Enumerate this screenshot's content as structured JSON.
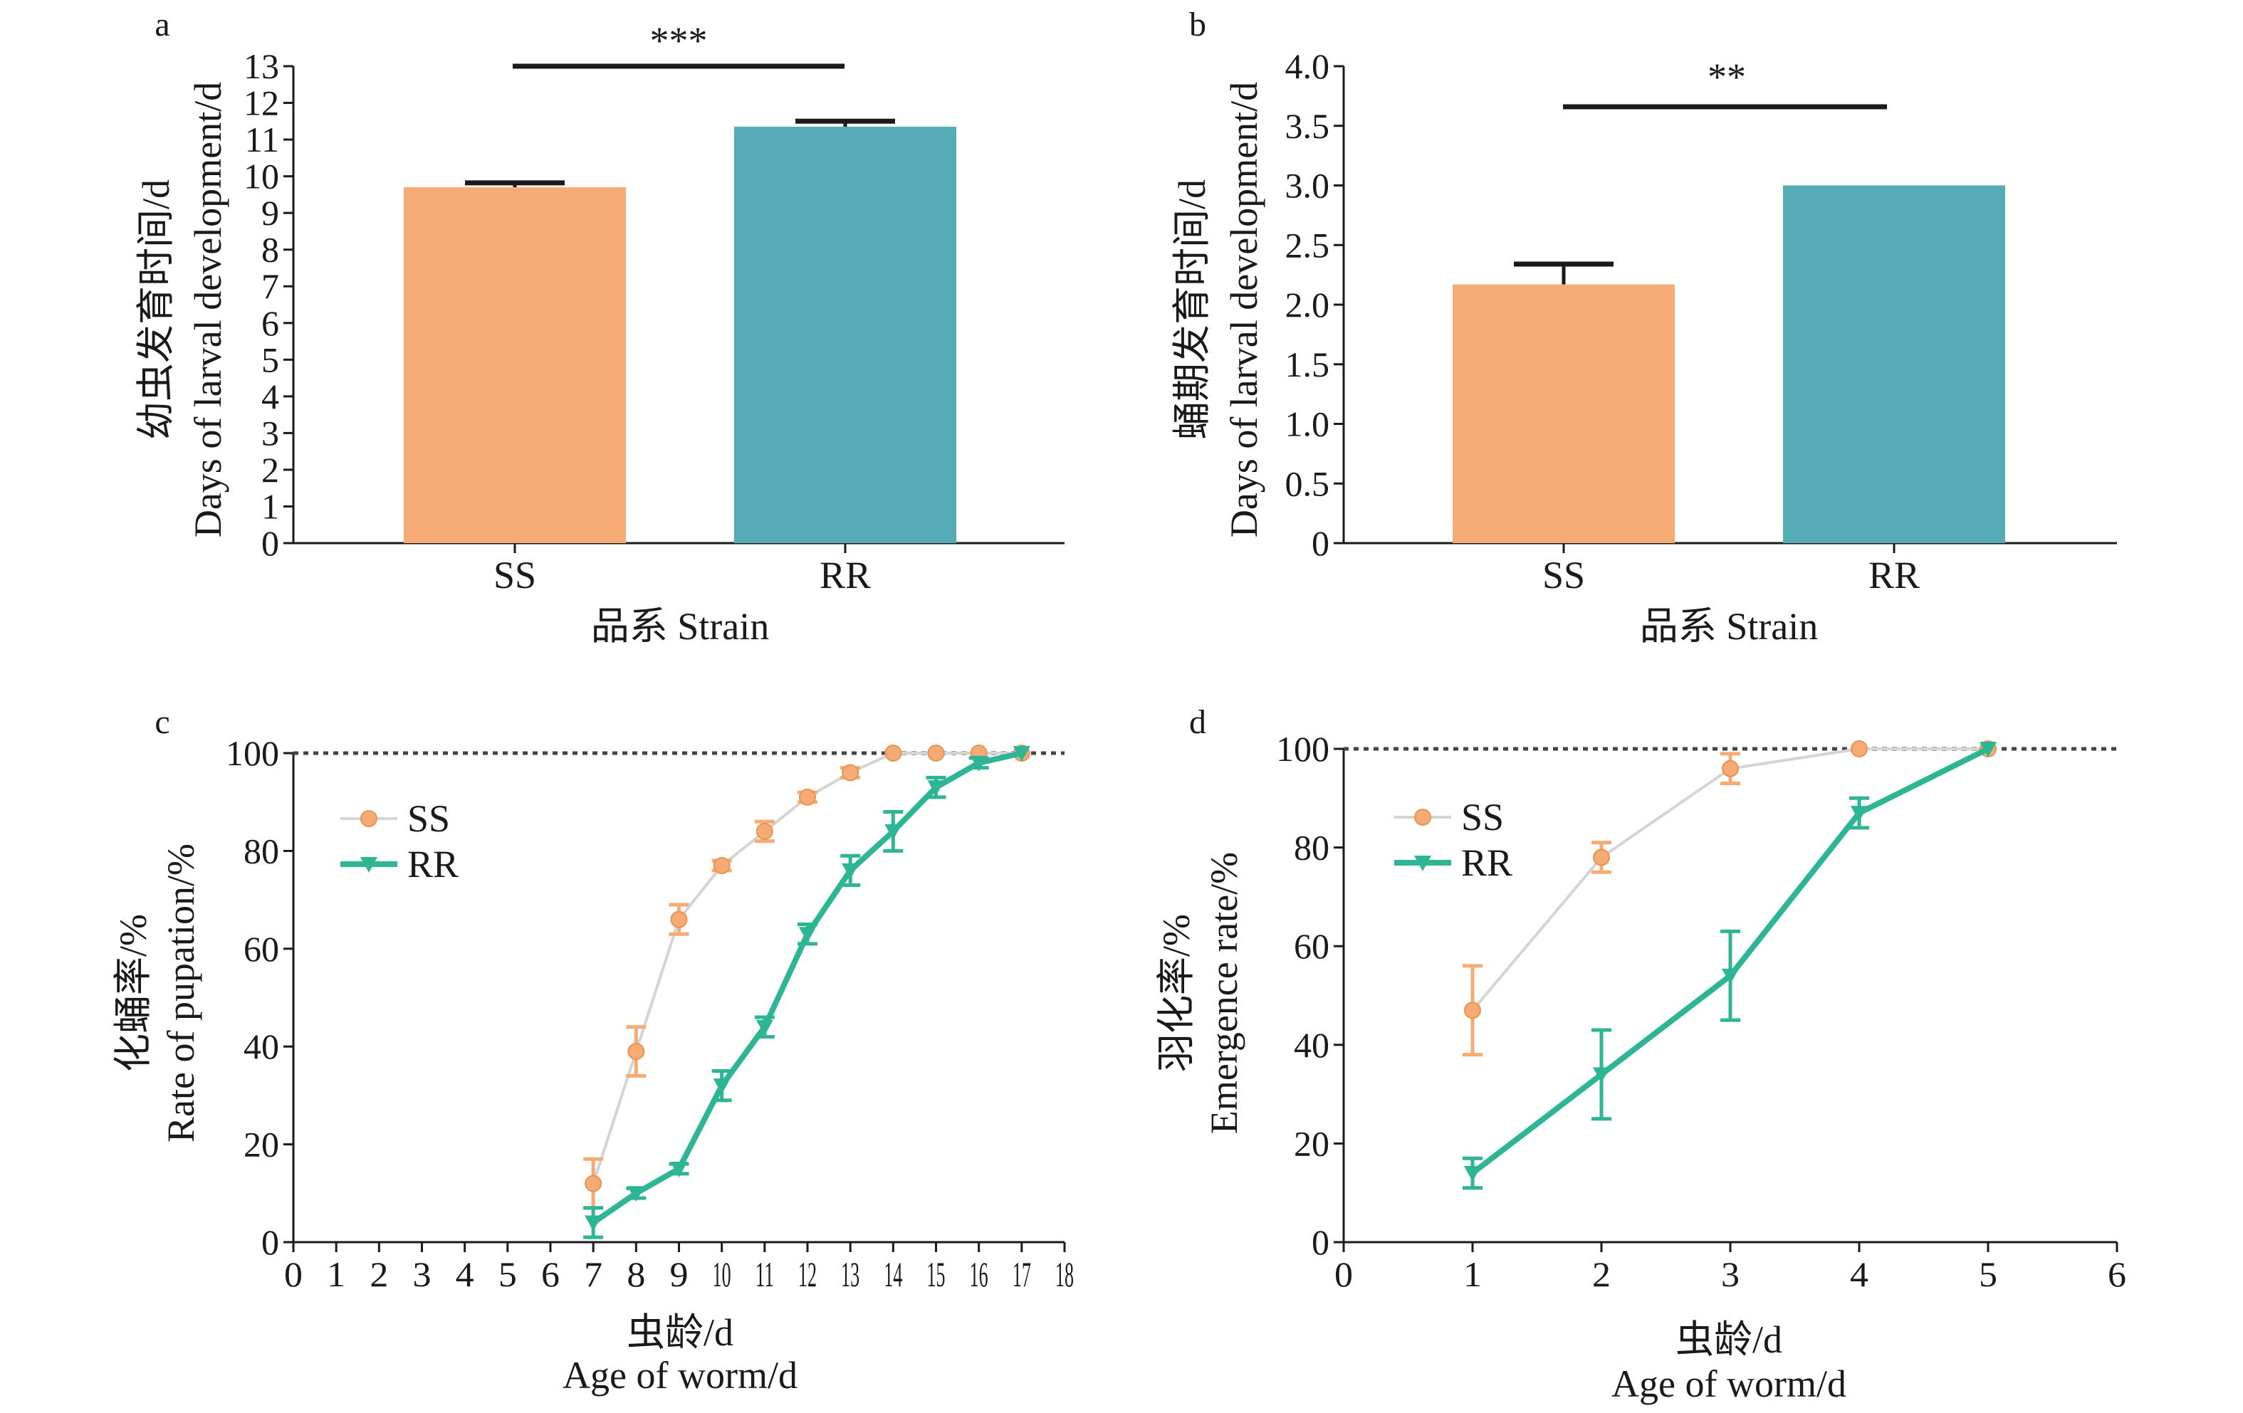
{
  "colors": {
    "SS": "#f5ab73",
    "RR": "#55abb6",
    "RR_line": "#2db595",
    "SS_line": "#d4d4d4",
    "ref": "#444444"
  },
  "chart_data": [
    {
      "panel": "a",
      "type": "bar",
      "ylabel_cn": "幼虫发育时间/d",
      "ylabel_en": "Days of larval development/d",
      "xlabel": "品系 Strain",
      "categories": [
        "SS",
        "RR"
      ],
      "values": [
        9.7,
        11.35
      ],
      "errors": [
        0.12,
        0.15
      ],
      "ylim": [
        0,
        13
      ],
      "yticks": [
        0,
        1,
        2,
        3,
        4,
        5,
        6,
        7,
        8,
        9,
        10,
        11,
        12,
        13
      ],
      "significance": "***"
    },
    {
      "panel": "b",
      "type": "bar",
      "ylabel_cn": "蛹期发育时间/d",
      "ylabel_en": "Days of larval development/d",
      "xlabel": "品系 Strain",
      "categories": [
        "SS",
        "RR"
      ],
      "values": [
        2.17,
        3.0
      ],
      "errors": [
        0.17,
        0
      ],
      "ylim": [
        0,
        4
      ],
      "yticks": [
        "0",
        "0.5",
        "1.0",
        "1.5",
        "2.0",
        "2.5",
        "3.0",
        "3.5",
        "4.0"
      ],
      "significance": "**"
    },
    {
      "panel": "c",
      "type": "line",
      "ylabel_cn": "化蛹率/%",
      "ylabel_en": "Rate of pupation/%",
      "xlabel_cn": "虫龄/d",
      "xlabel_en": "Age of worm/d",
      "xlim": [
        0,
        18
      ],
      "ylim": [
        0,
        100
      ],
      "xticks": [
        0,
        1,
        2,
        3,
        4,
        5,
        6,
        7,
        8,
        9,
        10,
        11,
        12,
        13,
        14,
        15,
        16,
        17,
        18
      ],
      "yticks": [
        0,
        20,
        40,
        60,
        80,
        100
      ],
      "reference_line": 100,
      "series": [
        {
          "name": "SS",
          "x": [
            7,
            8,
            9,
            10,
            11,
            12,
            13,
            14,
            15,
            16,
            17
          ],
          "y": [
            12,
            39,
            66,
            77,
            84,
            91,
            96,
            100,
            100,
            100,
            100
          ],
          "err": [
            5,
            5,
            3,
            1,
            2,
            1,
            1,
            0,
            0,
            0,
            0
          ]
        },
        {
          "name": "RR",
          "x": [
            7,
            8,
            9,
            10,
            11,
            12,
            13,
            14,
            15,
            16,
            17
          ],
          "y": [
            4,
            10,
            15,
            32,
            44,
            63,
            76,
            84,
            93,
            98,
            100
          ],
          "err": [
            3,
            1,
            1,
            3,
            2,
            2,
            3,
            4,
            2,
            1,
            0
          ]
        }
      ]
    },
    {
      "panel": "d",
      "type": "line",
      "ylabel_cn": "羽化率/%",
      "ylabel_en": "Emergence rate/%",
      "xlabel_cn": "虫龄/d",
      "xlabel_en": "Age of worm/d",
      "xlim": [
        0,
        6
      ],
      "ylim": [
        0,
        100
      ],
      "xticks": [
        0,
        1,
        2,
        3,
        4,
        5,
        6
      ],
      "yticks": [
        0,
        20,
        40,
        60,
        80,
        100
      ],
      "reference_line": 100,
      "series": [
        {
          "name": "SS",
          "x": [
            1,
            2,
            3,
            4,
            5
          ],
          "y": [
            47,
            78,
            96,
            100,
            100
          ],
          "err": [
            9,
            3,
            3,
            0,
            0
          ]
        },
        {
          "name": "RR",
          "x": [
            1,
            2,
            3,
            4,
            5
          ],
          "y": [
            14,
            34,
            54,
            87,
            100
          ],
          "err": [
            3,
            9,
            9,
            3,
            0
          ]
        }
      ]
    }
  ]
}
